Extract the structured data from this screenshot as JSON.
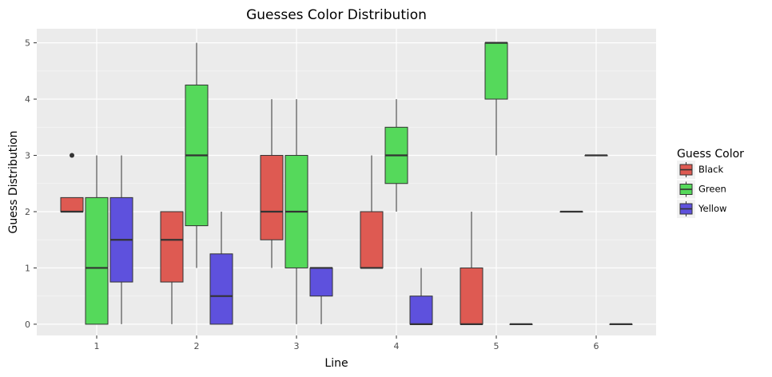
{
  "chart_data": {
    "type": "boxplot",
    "title": "Guesses Color Distribution",
    "xlabel": "Line",
    "ylabel": "Guess Distribution",
    "categories": [
      "1",
      "2",
      "3",
      "4",
      "5",
      "6"
    ],
    "ylim": [
      -0.2,
      5.25
    ],
    "yticks": [
      "0",
      "1",
      "2",
      "3",
      "4",
      "5"
    ],
    "grid": true,
    "legend": {
      "title": "Guess Color",
      "placement": "right",
      "entries": [
        "Black",
        "Green",
        "Yellow"
      ]
    },
    "series": [
      {
        "name": "Black",
        "color": "#de5a52",
        "boxes": [
          {
            "x": "1",
            "whislo": 2,
            "q1": 2,
            "med": 2,
            "q3": 2.25,
            "whishi": 2.25,
            "outliers": [
              3
            ]
          },
          {
            "x": "2",
            "whislo": 0,
            "q1": 0.75,
            "med": 1.5,
            "q3": 2,
            "whishi": 2,
            "outliers": []
          },
          {
            "x": "3",
            "whislo": 1,
            "q1": 1.5,
            "med": 2,
            "q3": 3,
            "whishi": 4,
            "outliers": []
          },
          {
            "x": "4",
            "whislo": 1,
            "q1": 1,
            "med": 1,
            "q3": 2,
            "whishi": 3,
            "outliers": []
          },
          {
            "x": "5",
            "whislo": 0,
            "q1": 0,
            "med": 0,
            "q3": 1,
            "whishi": 2,
            "outliers": []
          },
          {
            "x": "6",
            "whislo": 2,
            "q1": 2,
            "med": 2,
            "q3": 2,
            "whishi": 2,
            "outliers": []
          }
        ]
      },
      {
        "name": "Green",
        "color": "#55d95b",
        "boxes": [
          {
            "x": "1",
            "whislo": 0,
            "q1": 0,
            "med": 1,
            "q3": 2.25,
            "whishi": 3,
            "outliers": []
          },
          {
            "x": "2",
            "whislo": 1,
            "q1": 1.75,
            "med": 3,
            "q3": 4.25,
            "whishi": 5,
            "outliers": []
          },
          {
            "x": "3",
            "whislo": 0,
            "q1": 1,
            "med": 2,
            "q3": 3,
            "whishi": 4,
            "outliers": []
          },
          {
            "x": "4",
            "whislo": 2,
            "q1": 2.5,
            "med": 3,
            "q3": 3.5,
            "whishi": 4,
            "outliers": []
          },
          {
            "x": "5",
            "whislo": 3,
            "q1": 4,
            "med": 5,
            "q3": 5,
            "whishi": 5,
            "outliers": []
          },
          {
            "x": "6",
            "whislo": 3,
            "q1": 3,
            "med": 3,
            "q3": 3,
            "whishi": 3,
            "outliers": []
          }
        ]
      },
      {
        "name": "Yellow",
        "color": "#5e51dd",
        "boxes": [
          {
            "x": "1",
            "whislo": 0,
            "q1": 0.75,
            "med": 1.5,
            "q3": 2.25,
            "whishi": 3,
            "outliers": []
          },
          {
            "x": "2",
            "whislo": 0,
            "q1": 0,
            "med": 0.5,
            "q3": 1.25,
            "whishi": 2,
            "outliers": []
          },
          {
            "x": "3",
            "whislo": 0,
            "q1": 0.5,
            "med": 1,
            "q3": 1,
            "whishi": 1,
            "outliers": []
          },
          {
            "x": "4",
            "whislo": 0,
            "q1": 0,
            "med": 0,
            "q3": 0.5,
            "whishi": 1,
            "outliers": []
          },
          {
            "x": "5",
            "whislo": 0,
            "q1": 0,
            "med": 0,
            "q3": 0,
            "whishi": 0,
            "outliers": []
          },
          {
            "x": "6",
            "whislo": 0,
            "q1": 0,
            "med": 0,
            "q3": 0,
            "whishi": 0,
            "outliers": []
          }
        ]
      }
    ]
  }
}
